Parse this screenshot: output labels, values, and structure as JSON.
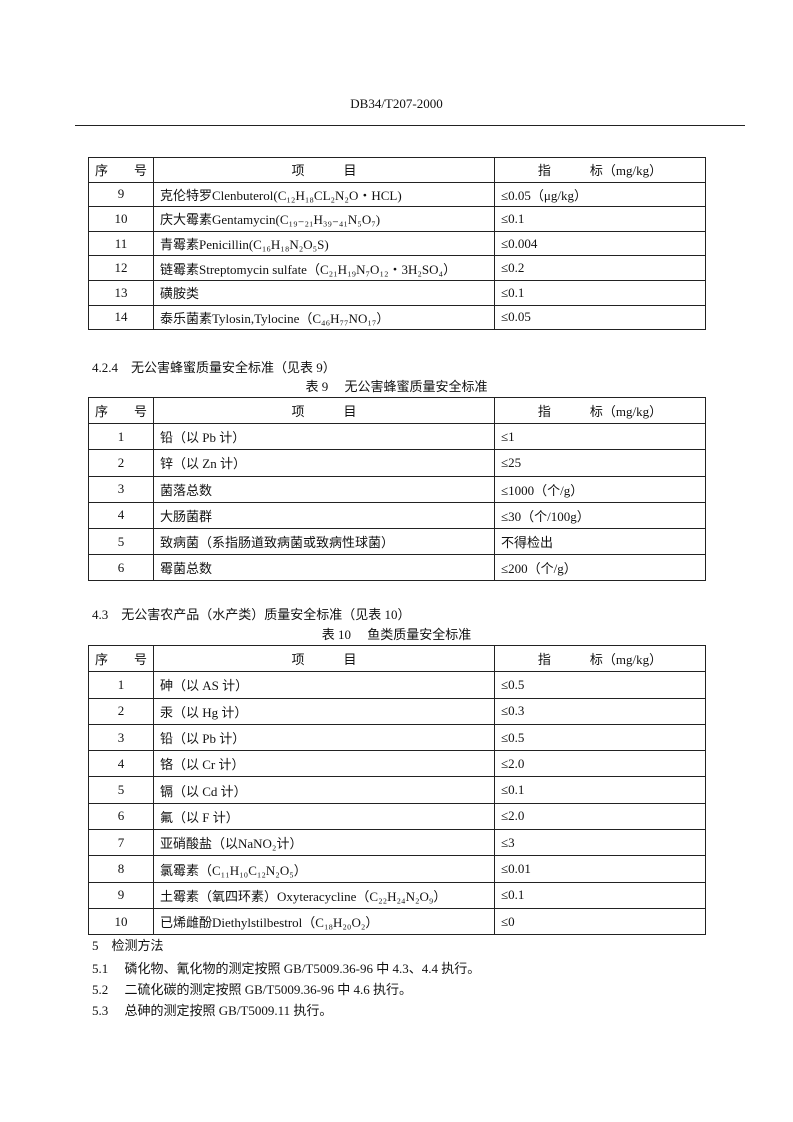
{
  "header": {
    "doc_code": "DB34/T207-2000"
  },
  "table_head": {
    "seq": "序　　号",
    "item": "项　　　目",
    "index": "指　　　标（mg/kg）"
  },
  "table8_cont": {
    "rows": [
      [
        "9",
        "克伦特罗Clenbuterol(C₁₂H₁₈CL₂N₂O・HCL)",
        "≤0.05（μg/kg）"
      ],
      [
        "10",
        "庆大霉素Gentamycin(C₁₉₋₂₁H₃₉₋₄₁N₅O₇)",
        "≤0.1"
      ],
      [
        "11",
        "青霉素Penicillin(C₁₆H₁₈N₂O₅S)",
        "≤0.004"
      ],
      [
        "12",
        "链霉素Streptomycin sulfate（C₂₁H₁₉N₇O₁₂・3H₂SO₄）",
        "≤0.2"
      ],
      [
        "13",
        "磺胺类",
        "≤0.1"
      ],
      [
        "14",
        "泰乐菌素Tylosin,Tylocine（C₄₆H₇₇NO₁₇）",
        "≤0.05"
      ]
    ]
  },
  "section_424": "4.2.4　无公害蜂蜜质量安全标准（见表 9）",
  "table9": {
    "caption": "表 9　 无公害蜂蜜质量安全标准",
    "rows": [
      [
        "1",
        "铅（以 Pb 计）",
        "≤1"
      ],
      [
        "2",
        "锌（以 Zn 计）",
        "≤25"
      ],
      [
        "3",
        "菌落总数",
        "≤1000（个/g）"
      ],
      [
        "4",
        "大肠菌群",
        "≤30（个/100g）"
      ],
      [
        "5",
        "致病菌（系指肠道致病菌或致病性球菌）",
        "不得检出"
      ],
      [
        "6",
        "霉菌总数",
        "≤200（个/g）"
      ]
    ]
  },
  "section_43": "4.3　无公害农产品（水产类）质量安全标准（见表 10）",
  "table10": {
    "caption": "表 10　 鱼类质量安全标准",
    "rows": [
      [
        "1",
        "砷（以 AS 计）",
        "≤0.5"
      ],
      [
        "2",
        "汞（以 Hg 计）",
        "≤0.3"
      ],
      [
        "3",
        "铅（以 Pb 计）",
        "≤0.5"
      ],
      [
        "4",
        "铬（以 Cr 计）",
        "≤2.0"
      ],
      [
        "5",
        "镉（以 Cd 计）",
        "≤0.1"
      ],
      [
        "6",
        "氟（以 F 计）",
        "≤2.0"
      ],
      [
        "7",
        "亚硝酸盐（以NaNO₂计）",
        "≤3"
      ],
      [
        "8",
        "氯霉素（C₁₁H₁₀C₁₂N₂O₅）",
        "≤0.01"
      ],
      [
        "9",
        "土霉素（氧四环素）Oxyteracycline（C₂₂H₂₄N₂O₉）",
        "≤0.1"
      ],
      [
        "10",
        "已烯雌酚Diethylstilbestrol（C₁₈H₂₀O₂）",
        "≤0"
      ]
    ]
  },
  "section_5": {
    "title": "5　检测方法",
    "items": [
      "5.1　 磷化物、氰化物的测定按照 GB/T5009.36-96 中 4.3、4.4 执行。",
      "5.2　 二硫化碳的测定按照 GB/T5009.36-96 中 4.6 执行。",
      "5.3　 总砷的测定按照 GB/T5009.11 执行。"
    ]
  }
}
